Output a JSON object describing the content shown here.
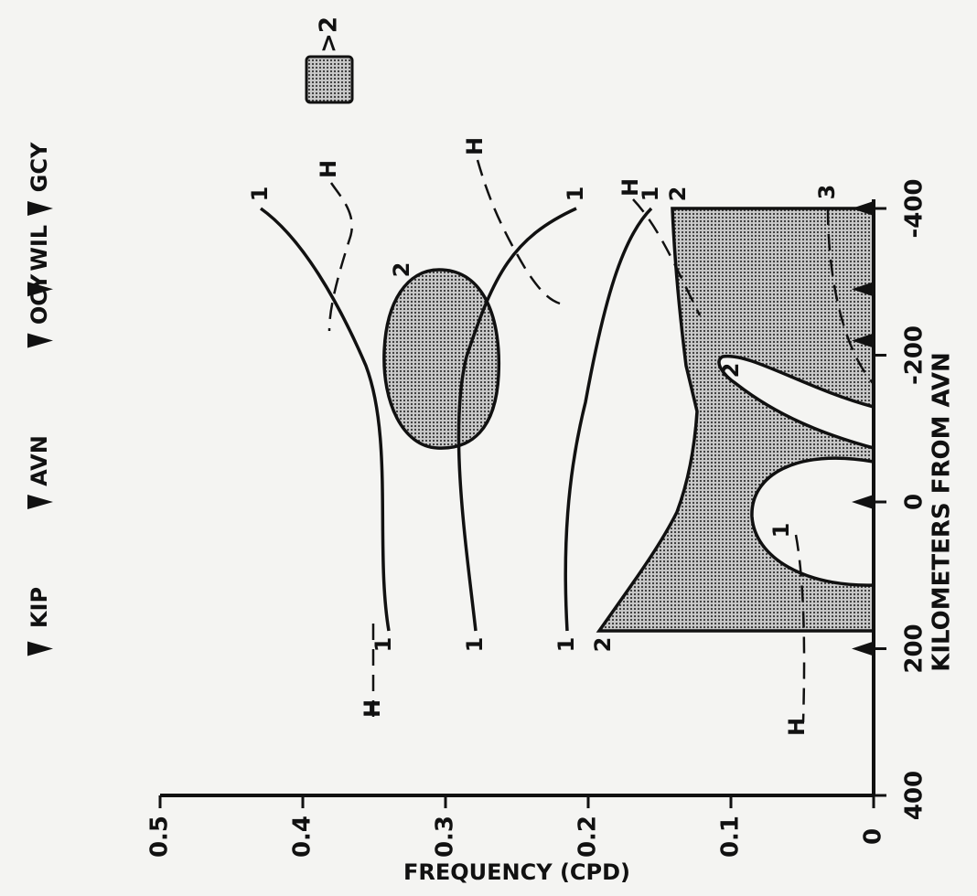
{
  "chart_data": {
    "type": "contour",
    "xlabel": "FREQUENCY (CPD)",
    "ylabel": "KILOMETERS FROM AVN",
    "xlim": [
      0,
      0.5
    ],
    "xticks": [
      0,
      0.1,
      0.2,
      0.3,
      0.4,
      0.5
    ],
    "ylim": [
      -400,
      400
    ],
    "yticks": [
      400,
      200,
      0,
      -200,
      -400
    ],
    "legend": {
      "label": ">2",
      "color": "#9a9a9a"
    },
    "stations": [
      {
        "name": "GCY",
        "km": -400
      },
      {
        "name": "WIL",
        "km": -290
      },
      {
        "name": "OCY",
        "km": -220
      },
      {
        "name": "AVN",
        "km": 0
      },
      {
        "name": "KIP",
        "km": 200
      }
    ],
    "contour_labels": [
      "1",
      "H",
      "2",
      "H",
      "1",
      "H",
      "1",
      "2",
      "3",
      "2",
      "1",
      "H",
      "1",
      "1",
      "1",
      "2",
      "H"
    ]
  }
}
